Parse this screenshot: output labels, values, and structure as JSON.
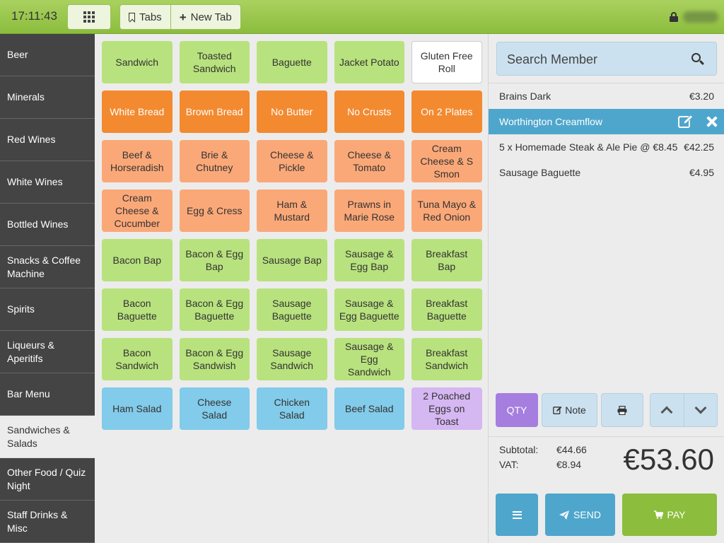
{
  "topbar": {
    "time": "17:11:43",
    "tabs_label": "Tabs",
    "new_tab_label": "New Tab"
  },
  "sidebar": {
    "categories": [
      {
        "label": "Beer"
      },
      {
        "label": "Minerals"
      },
      {
        "label": "Red Wines"
      },
      {
        "label": "White Wines"
      },
      {
        "label": "Bottled Wines"
      },
      {
        "label": "Snacks & Coffee Machine"
      },
      {
        "label": "Spirits"
      },
      {
        "label": "Liqueurs & Aperitifs"
      },
      {
        "label": "Bar Menu"
      },
      {
        "label": "Sandwiches & Salads",
        "active": true
      },
      {
        "label": "Other Food / Quiz Night"
      },
      {
        "label": "Staff Drinks & Misc"
      }
    ]
  },
  "products": [
    {
      "label": "Sandwich",
      "color": "green"
    },
    {
      "label": "Toasted Sandwich",
      "color": "green"
    },
    {
      "label": "Baguette",
      "color": "green"
    },
    {
      "label": "Jacket Potato",
      "color": "green"
    },
    {
      "label": "Gluten Free Roll",
      "color": "white"
    },
    {
      "label": "White Bread",
      "color": "orange"
    },
    {
      "label": "Brown Bread",
      "color": "orange"
    },
    {
      "label": "No Butter",
      "color": "orange"
    },
    {
      "label": "No Crusts",
      "color": "orange"
    },
    {
      "label": "On 2 Plates",
      "color": "orange"
    },
    {
      "label": "Beef & Horseradish",
      "color": "peach"
    },
    {
      "label": "Brie & Chutney",
      "color": "peach"
    },
    {
      "label": "Cheese & Pickle",
      "color": "peach"
    },
    {
      "label": "Cheese & Tomato",
      "color": "peach"
    },
    {
      "label": "Cream Cheese & S Smon",
      "color": "peach"
    },
    {
      "label": "Cream Cheese & Cucumber",
      "color": "peach"
    },
    {
      "label": "Egg & Cress",
      "color": "peach"
    },
    {
      "label": "Ham & Mustard",
      "color": "peach"
    },
    {
      "label": "Prawns in Marie Rose",
      "color": "peach"
    },
    {
      "label": "Tuna Mayo & Red Onion",
      "color": "peach"
    },
    {
      "label": "Bacon Bap",
      "color": "green"
    },
    {
      "label": "Bacon & Egg Bap",
      "color": "green"
    },
    {
      "label": "Sausage Bap",
      "color": "green"
    },
    {
      "label": "Sausage & Egg Bap",
      "color": "green"
    },
    {
      "label": "Breakfast Bap",
      "color": "green"
    },
    {
      "label": "Bacon Baguette",
      "color": "green"
    },
    {
      "label": "Bacon & Egg Baguette",
      "color": "green"
    },
    {
      "label": "Sausage Baguette",
      "color": "green"
    },
    {
      "label": "Sausage & Egg Baguette",
      "color": "green"
    },
    {
      "label": "Breakfast Baguette",
      "color": "green"
    },
    {
      "label": "Bacon Sandwich",
      "color": "green"
    },
    {
      "label": "Bacon & Egg Sandwish",
      "color": "green"
    },
    {
      "label": "Sausage Sandwich",
      "color": "green"
    },
    {
      "label": "Sausage & Egg Sandwich",
      "color": "green"
    },
    {
      "label": "Breakfast Sandwich",
      "color": "green"
    },
    {
      "label": "Ham Salad",
      "color": "blue"
    },
    {
      "label": "Cheese Salad",
      "color": "blue"
    },
    {
      "label": "Chicken Salad",
      "color": "blue"
    },
    {
      "label": "Beef Salad",
      "color": "blue"
    },
    {
      "label": "2 Poached Eggs on Toast",
      "color": "purple"
    }
  ],
  "search": {
    "placeholder": "Search Member"
  },
  "order": {
    "items": [
      {
        "name": "Brains Dark",
        "price": "€3.20"
      },
      {
        "name": "Worthington Creamflow",
        "price": "",
        "selected": true
      },
      {
        "name": "5 x Homemade Steak & Ale Pie @ €8.45",
        "price": "€42.25"
      },
      {
        "name": "Sausage Baguette",
        "price": "€4.95"
      }
    ],
    "qty_label": "QTY",
    "note_label": "Note"
  },
  "totals": {
    "subtotal_label": "Subtotal:",
    "subtotal": "€44.66",
    "vat_label": "VAT:",
    "vat": "€8.94",
    "total": "€53.60"
  },
  "buttons": {
    "send_label": "SEND",
    "pay_label": "PAY"
  },
  "colors": {
    "green": "#b8e27d",
    "orange": "#f38a30",
    "peach": "#fba878",
    "blue": "#82cbea",
    "purple": "#d5b7f2",
    "accent_blue": "#4ea6cc",
    "pay_green": "#8cbd3d"
  },
  "icons": [
    "grid-icon",
    "bookmark-icon",
    "plus-icon",
    "lock-icon",
    "search-icon",
    "edit-icon",
    "close-icon",
    "print-icon",
    "chevron-up-icon",
    "chevron-down-icon",
    "menu-icon",
    "send-icon",
    "cart-icon"
  ]
}
